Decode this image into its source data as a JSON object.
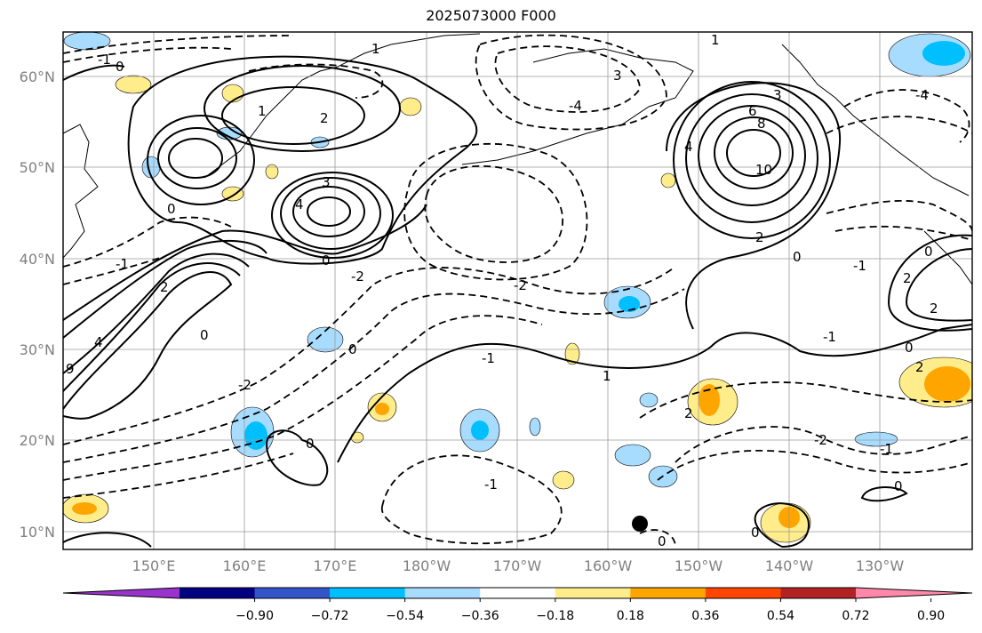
{
  "title": "2025073000 F000",
  "lat_labels": [
    "60°N",
    "50°N",
    "40°N",
    "30°N",
    "20°N",
    "10°N"
  ],
  "lon_labels": [
    "150°E",
    "160°E",
    "170°E",
    "180°W",
    "170°W",
    "160°W",
    "150°W",
    "140°W",
    "130°W"
  ],
  "colorbar": {
    "ticks": [
      "−0.90",
      "−0.72",
      "−0.54",
      "−0.36",
      "−0.18",
      "0.18",
      "0.36",
      "0.54",
      "0.72",
      "0.90"
    ],
    "colors": [
      "#9933cc",
      "#000080",
      "#3355cc",
      "#00bfff",
      "#a8dcff",
      "#ffffff",
      "#ffec8b",
      "#ffa500",
      "#ff4500",
      "#b22222",
      "#ff88aa"
    ]
  },
  "contour_labels": [
    "-1",
    "0",
    "1",
    "2",
    "3",
    "4",
    "6",
    "8",
    "10",
    "-4",
    "-2",
    "9"
  ]
}
